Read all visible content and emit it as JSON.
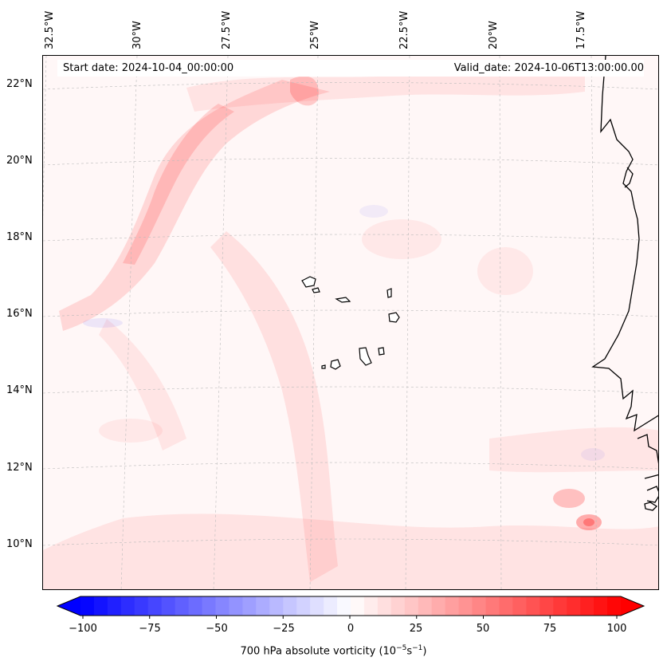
{
  "map": {
    "start_date": "Start date: 2024-10-04_00:00:00",
    "valid_date": "Valid_date: 2024-10-06T13:00:00.00",
    "lon_labels": [
      "32.5°W",
      "30°W",
      "27.5°W",
      "25°W",
      "22.5°W",
      "20°W",
      "17.5°W"
    ],
    "lat_labels": [
      "22°N",
      "20°N",
      "18°N",
      "16°N",
      "14°N",
      "12°N",
      "10°N"
    ],
    "field": "700 hPa absolute vorticity",
    "region": "Cabo Verde / West Africa coast"
  },
  "colorbar": {
    "label_text": "700 hPa absolute vorticity (10",
    "label_sup1": "−5",
    "label_mid": "s",
    "label_sup2": "−1",
    "label_close": ")",
    "ticks": [
      "−100",
      "−75",
      "−50",
      "−25",
      "0",
      "25",
      "50",
      "75",
      "100"
    ],
    "min": -100,
    "max": 100,
    "low_color": "#0000ff",
    "mid_color": "#ffffff",
    "high_color": "#ff0000"
  }
}
